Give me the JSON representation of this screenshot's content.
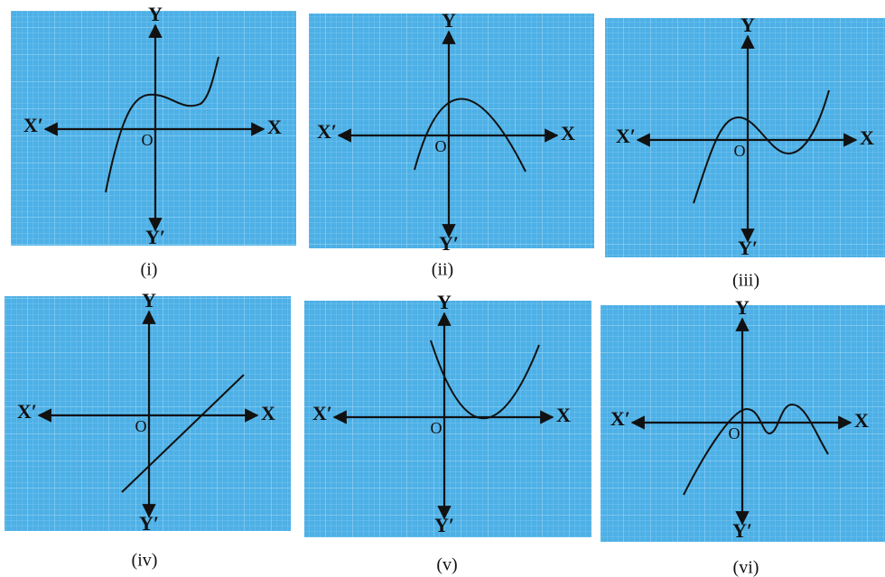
{
  "panels": [
    {
      "caption": "(i)",
      "y_label": "Y",
      "x_label": "X",
      "x_neg_label": "X′",
      "y_neg_label": "Y′",
      "origin_label": "O"
    },
    {
      "caption": "(ii)",
      "y_label": "Y",
      "x_label": "X",
      "x_neg_label": "X′",
      "y_neg_label": "Y′",
      "origin_label": "O"
    },
    {
      "caption": "(iii)",
      "y_label": "Y",
      "x_label": "X",
      "x_neg_label": "X′",
      "y_neg_label": "Y′",
      "origin_label": "O"
    },
    {
      "caption": "(iv)",
      "y_label": "Y",
      "x_label": "X",
      "x_neg_label": "X′",
      "y_neg_label": "Y′",
      "origin_label": "O"
    },
    {
      "caption": "(v)",
      "y_label": "Y",
      "x_label": "X",
      "x_neg_label": "X′",
      "y_neg_label": "Y′",
      "origin_label": "O"
    },
    {
      "caption": "(vi)",
      "y_label": "Y",
      "x_label": "X",
      "x_neg_label": "X′",
      "y_neg_label": "Y′",
      "origin_label": "O"
    }
  ]
}
